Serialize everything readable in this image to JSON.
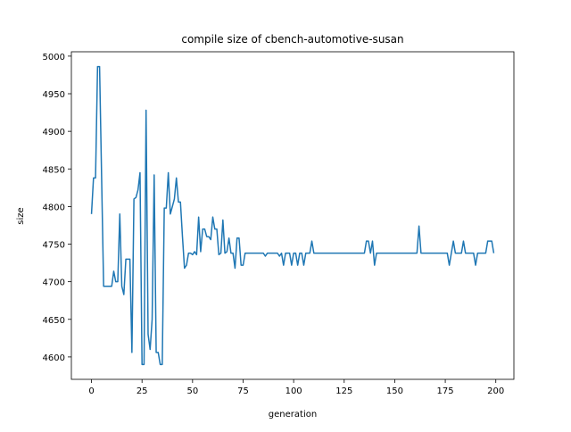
{
  "chart_data": {
    "type": "line",
    "title": "compile size of cbench-automotive-susan",
    "x_label": "generation",
    "y_label": "size",
    "color": "#1f77b4",
    "x": [
      0,
      1,
      2,
      3,
      4,
      5,
      6,
      7,
      8,
      9,
      10,
      11,
      12,
      13,
      14,
      15,
      16,
      17,
      18,
      19,
      20,
      21,
      22,
      23,
      24,
      25,
      26,
      27,
      28,
      29,
      30,
      31,
      32,
      33,
      34,
      35,
      36,
      37,
      38,
      39,
      40,
      41,
      42,
      43,
      44,
      45,
      46,
      47,
      48,
      49,
      50,
      51,
      52,
      53,
      54,
      55,
      56,
      57,
      58,
      59,
      60,
      61,
      62,
      63,
      64,
      65,
      66,
      67,
      68,
      69,
      70,
      71,
      72,
      73,
      74,
      75,
      76,
      77,
      78,
      79,
      80,
      81,
      82,
      83,
      84,
      85,
      86,
      87,
      88,
      89,
      90,
      91,
      92,
      93,
      94,
      95,
      96,
      97,
      98,
      99,
      100,
      101,
      102,
      103,
      104,
      105,
      106,
      107,
      108,
      109,
      110,
      111,
      112,
      113,
      114,
      115,
      116,
      117,
      118,
      119,
      120,
      121,
      122,
      123,
      124,
      125,
      126,
      127,
      128,
      129,
      130,
      131,
      132,
      133,
      134,
      135,
      136,
      137,
      138,
      139,
      140,
      141,
      142,
      143,
      144,
      145,
      146,
      147,
      148,
      149,
      150,
      151,
      152,
      153,
      154,
      155,
      156,
      157,
      158,
      159,
      160,
      161,
      162,
      163,
      164,
      165,
      166,
      167,
      168,
      169,
      170,
      171,
      172,
      173,
      174,
      175,
      176,
      177,
      178,
      179,
      180,
      181,
      182,
      183,
      184,
      185,
      186,
      187,
      188,
      189,
      190,
      191,
      192,
      193,
      194,
      195,
      196,
      197,
      198,
      199
    ],
    "values": [
      4790,
      4838,
      4838,
      4986,
      4986,
      4840,
      4694,
      4694,
      4694,
      4694,
      4694,
      4714,
      4700,
      4700,
      4790,
      4694,
      4683,
      4730,
      4730,
      4730,
      4606,
      4810,
      4812,
      4822,
      4845,
      4590,
      4590,
      4928,
      4630,
      4610,
      4650,
      4842,
      4606,
      4606,
      4590,
      4590,
      4798,
      4798,
      4845,
      4790,
      4800,
      4810,
      4838,
      4806,
      4806,
      4760,
      4718,
      4722,
      4738,
      4738,
      4736,
      4740,
      4736,
      4786,
      4740,
      4770,
      4770,
      4760,
      4760,
      4756,
      4786,
      4770,
      4770,
      4736,
      4738,
      4782,
      4738,
      4740,
      4758,
      4738,
      4738,
      4718,
      4758,
      4758,
      4722,
      4722,
      4738,
      4738,
      4738,
      4738,
      4738,
      4738,
      4738,
      4738,
      4738,
      4738,
      4734,
      4738,
      4738,
      4738,
      4738,
      4738,
      4738,
      4734,
      4738,
      4722,
      4738,
      4738,
      4738,
      4722,
      4738,
      4738,
      4722,
      4738,
      4738,
      4722,
      4738,
      4738,
      4738,
      4754,
      4738,
      4738,
      4738,
      4738,
      4738,
      4738,
      4738,
      4738,
      4738,
      4738,
      4738,
      4738,
      4738,
      4738,
      4738,
      4738,
      4738,
      4738,
      4738,
      4738,
      4738,
      4738,
      4738,
      4738,
      4738,
      4738,
      4754,
      4754,
      4738,
      4754,
      4722,
      4738,
      4738,
      4738,
      4738,
      4738,
      4738,
      4738,
      4738,
      4738,
      4738,
      4738,
      4738,
      4738,
      4738,
      4738,
      4738,
      4738,
      4738,
      4738,
      4738,
      4738,
      4774,
      4738,
      4738,
      4738,
      4738,
      4738,
      4738,
      4738,
      4738,
      4738,
      4738,
      4738,
      4738,
      4738,
      4738,
      4722,
      4738,
      4754,
      4738,
      4738,
      4738,
      4738,
      4754,
      4738,
      4738,
      4738,
      4738,
      4738,
      4722,
      4738,
      4738,
      4738,
      4738,
      4738,
      4754,
      4754,
      4754,
      4738
    ],
    "xlim": [
      -9.95,
      208.95
    ],
    "ylim": [
      4570.2,
      5005.8
    ],
    "xticks": [
      0,
      25,
      50,
      75,
      100,
      125,
      150,
      175,
      200
    ],
    "yticks": [
      4600,
      4650,
      4700,
      4750,
      4800,
      4850,
      4900,
      4950,
      5000
    ]
  }
}
